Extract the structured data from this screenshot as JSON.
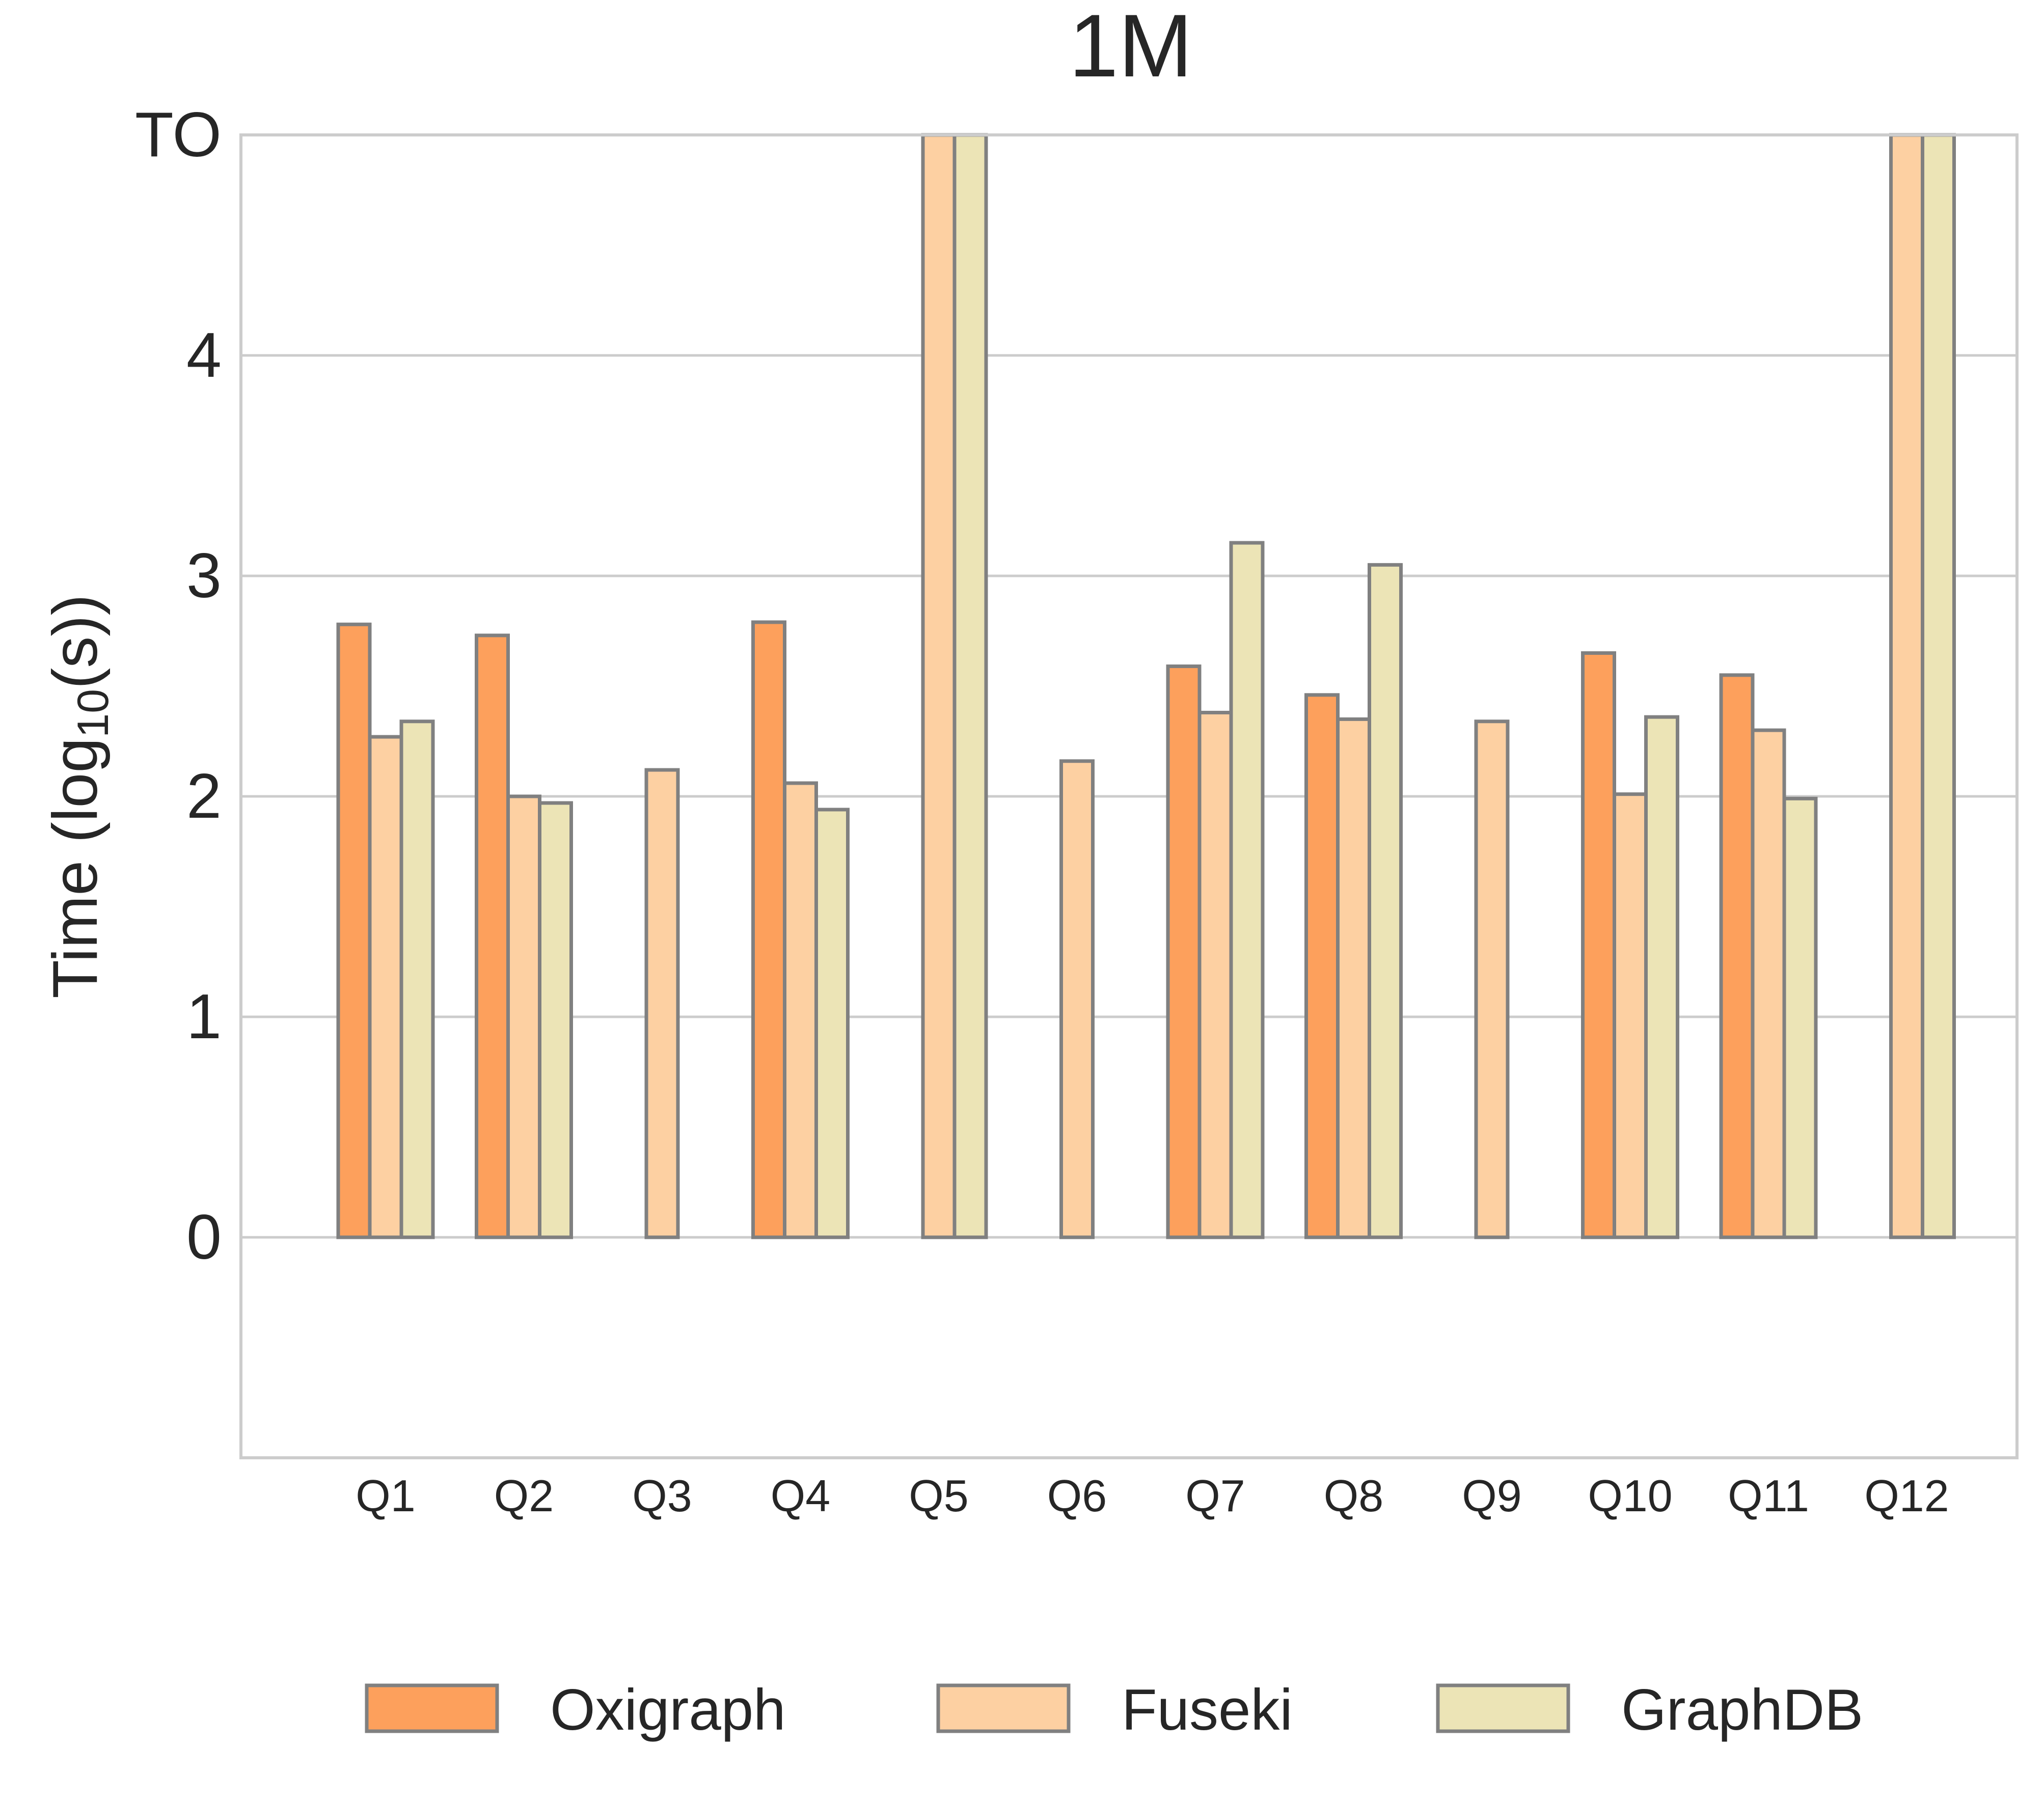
{
  "chart_data": {
    "type": "bar",
    "title": "1M",
    "ylabel": "Time (log10(s))",
    "ylabel_parts": {
      "prefix": "Time (log",
      "subscript": "10",
      "suffix": "(s))"
    },
    "xlabel": "",
    "ylim": [
      -1,
      5
    ],
    "yticks": [
      {
        "value": 0,
        "label": "0"
      },
      {
        "value": 1,
        "label": "1"
      },
      {
        "value": 2,
        "label": "2"
      },
      {
        "value": 3,
        "label": "3"
      },
      {
        "value": 4,
        "label": "4"
      },
      {
        "value": 5,
        "label": "TO"
      }
    ],
    "grid": "horizontal",
    "legend_position": "bottom",
    "categories": [
      "Q1",
      "Q2",
      "Q3",
      "Q4",
      "Q5",
      "Q6",
      "Q7",
      "Q8",
      "Q9",
      "Q10",
      "Q11",
      "Q12"
    ],
    "series": [
      {
        "name": "Oxigraph",
        "color": "#FDA05C",
        "values": [
          2.78,
          2.73,
          null,
          2.79,
          null,
          null,
          2.59,
          2.46,
          null,
          2.65,
          2.55,
          null
        ]
      },
      {
        "name": "Fuseki",
        "color": "#FDD0A2",
        "values": [
          2.27,
          2.0,
          2.12,
          2.06,
          5,
          2.16,
          2.38,
          2.35,
          2.34,
          2.01,
          2.3,
          5
        ]
      },
      {
        "name": "GraphDB",
        "color": "#ECE4B6",
        "values": [
          2.34,
          1.97,
          null,
          1.94,
          5,
          null,
          3.15,
          3.05,
          null,
          2.36,
          1.99,
          5
        ]
      }
    ],
    "bar_edge_color": "#808080",
    "grid_color": "#CCCCCC",
    "text_color": "#262626"
  }
}
